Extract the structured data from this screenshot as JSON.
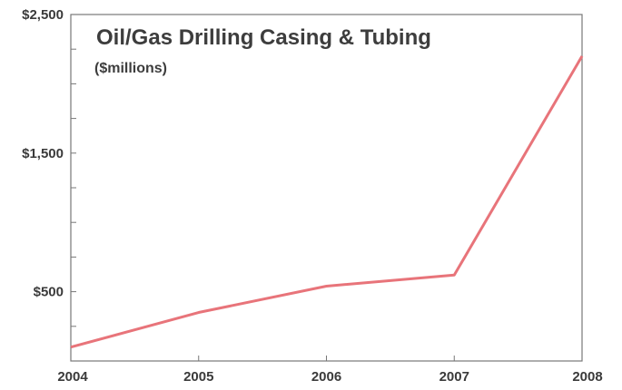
{
  "chart_data": {
    "type": "line",
    "title": "Oil/Gas Drilling Casing & Tubing",
    "subtitle": "($millions)",
    "x": [
      "2004",
      "2005",
      "2006",
      "2007",
      "2008"
    ],
    "series": [
      {
        "values": [
          100,
          350,
          540,
          620,
          2200
        ]
      }
    ],
    "y_tick_labels": [
      "$2,500",
      "$1,500",
      "$500"
    ],
    "y_tick_values": [
      2500,
      1500,
      500
    ],
    "ylim": [
      0,
      2500
    ],
    "grid": false,
    "legend": "none"
  },
  "colors": {
    "line": "#e8747a",
    "frame": "#777777",
    "text": "#3a3a3a"
  }
}
